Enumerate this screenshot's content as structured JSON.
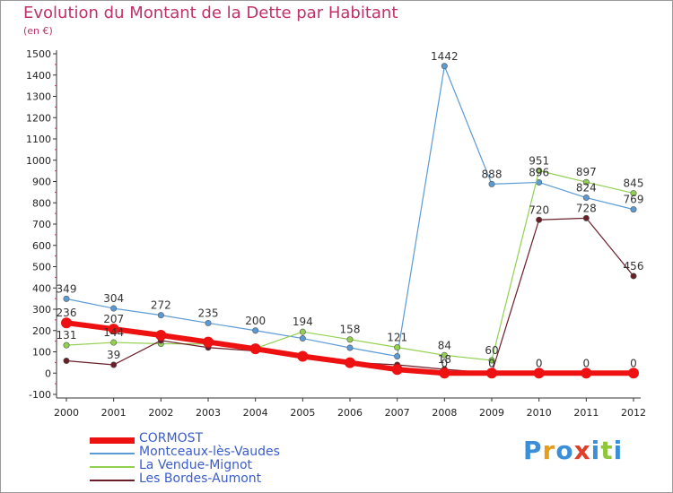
{
  "title": "Evolution du Montant de la Dette par Habitant",
  "subtitle": "(en €)",
  "brand": {
    "text": "Proxiti",
    "letters": [
      "P",
      "r",
      "o",
      "x",
      "i",
      "t",
      "i"
    ],
    "colors": [
      "#3a8fd8",
      "#e89c1c",
      "#3a8fd8",
      "#e0402a",
      "#3a8fd8",
      "#8fc63a",
      "#3a8fd8"
    ]
  },
  "chart_data": {
    "type": "line",
    "title": "Evolution du Montant de la Dette par Habitant",
    "ylabel": "(en €)",
    "xlabel": "",
    "ylim": [
      -100,
      1500
    ],
    "yticks": [
      -100,
      0,
      100,
      200,
      300,
      400,
      500,
      600,
      700,
      800,
      900,
      1000,
      1100,
      1200,
      1300,
      1400,
      1500
    ],
    "categories": [
      "2000",
      "2001",
      "2002",
      "2003",
      "2004",
      "2005",
      "2006",
      "2007",
      "2008",
      "2009",
      "2010",
      "2011",
      "2012"
    ],
    "grid": false,
    "legend_position": "bottom-left",
    "series": [
      {
        "name": "Montceaux-lès-Vaudes",
        "color": "#5b9bd5",
        "width": 1.2,
        "values": [
          349,
          304,
          272,
          235,
          200,
          163,
          119,
          79,
          1442,
          888,
          896,
          824,
          769
        ],
        "labels": [
          "349",
          "304",
          "272",
          "235",
          "200",
          "",
          "",
          "",
          "1442",
          "888",
          "896",
          "824",
          "769"
        ]
      },
      {
        "name": "La Vendue-Mignot",
        "color": "#92d050",
        "width": 1.2,
        "values": [
          131,
          144,
          138,
          137,
          116,
          194,
          158,
          121,
          84,
          60,
          951,
          897,
          845
        ],
        "labels": [
          "131",
          "144",
          "",
          "",
          "",
          "194",
          "158",
          "121",
          "84",
          "60",
          "951",
          "897",
          "845"
        ]
      },
      {
        "name": "Les Bordes-Aumont",
        "color": "#6b1e28",
        "width": 1.2,
        "values": [
          58,
          39,
          153,
          120,
          104,
          78,
          50,
          39,
          18,
          0,
          720,
          728,
          456
        ],
        "labels": [
          "",
          "39",
          "",
          "",
          "",
          "",
          "",
          "",
          "18",
          "",
          "720",
          "728",
          "456"
        ]
      },
      {
        "name": "CORMOST",
        "color": "#ee1111",
        "width": 6,
        "values": [
          236,
          207,
          178,
          146,
          114,
          79,
          49,
          17,
          0,
          0,
          0,
          0,
          0
        ],
        "labels": [
          "236",
          "207",
          "",
          "",
          "",
          "",
          "",
          "",
          "0",
          "0",
          "0",
          "0",
          "0"
        ]
      }
    ],
    "legend_order": [
      "CORMOST",
      "Montceaux-lès-Vaudes",
      "La Vendue-Mignot",
      "Les Bordes-Aumont"
    ]
  }
}
